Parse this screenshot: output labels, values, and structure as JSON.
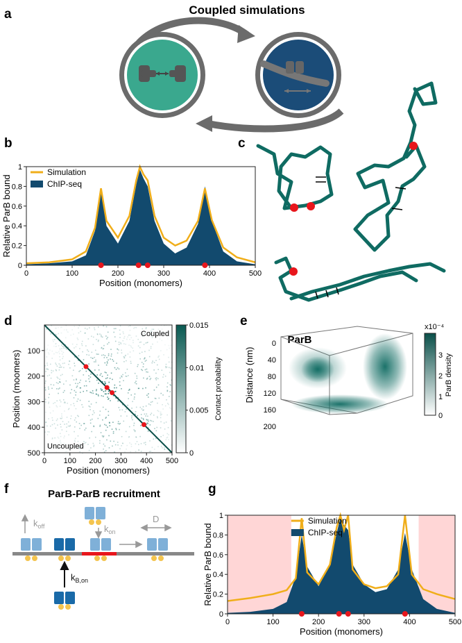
{
  "panels": {
    "a": {
      "letter": "a",
      "title": "Coupled simulations"
    },
    "b": {
      "letter": "b"
    },
    "c": {
      "letter": "c"
    },
    "d": {
      "letter": "d"
    },
    "e": {
      "letter": "e",
      "title": "ParB",
      "ylabel": "Distance (nm)",
      "yticks": [
        "0",
        "40",
        "80",
        "120",
        "160",
        "200"
      ],
      "colorbar_label": "ParB density",
      "colorbar_exp": "x10⁻⁴",
      "colorbar_ticks": [
        "3",
        "2",
        "1",
        "0"
      ]
    },
    "f": {
      "letter": "f",
      "title": "ParB-ParB recruitment",
      "rates": {
        "koff": "k",
        "koff_sub": "off",
        "kon": "k",
        "kon_sub": "on",
        "D": "D",
        "kbon": "k",
        "kbon_sub": "B,on"
      }
    },
    "g": {
      "letter": "g"
    }
  },
  "colors": {
    "chip": "#124a6e",
    "sim": "#f0ae1a",
    "teal": "#0f6b62",
    "red": "#e8161c",
    "shade": "#ffd6d6",
    "cellA": "#3aa88e",
    "cellB": "#1b4c78",
    "ring": "#6b6b6b"
  },
  "chart_data": [
    {
      "id": "b",
      "type": "area",
      "xlabel": "Position (monomers)",
      "ylabel": "Relative ParB bound",
      "xlim": [
        0,
        500
      ],
      "ylim": [
        0,
        1
      ],
      "xticks": [
        0,
        100,
        200,
        300,
        400,
        500
      ],
      "yticks": [
        0,
        0.2,
        0.4,
        0.6,
        0.8,
        1
      ],
      "ytick_labels": [
        "0",
        "0.2",
        "0.4",
        "0.6",
        "0.8",
        "1"
      ],
      "legend": [
        "Simulation",
        "ChIP-seq"
      ],
      "parS_sites": [
        163,
        245,
        265,
        390
      ],
      "x": [
        0,
        50,
        100,
        130,
        150,
        163,
        175,
        200,
        225,
        240,
        248,
        256,
        265,
        280,
        300,
        325,
        350,
        375,
        390,
        405,
        430,
        460,
        500
      ],
      "series": [
        {
          "name": "ChIP-seq",
          "values": [
            0.01,
            0.02,
            0.04,
            0.1,
            0.35,
            0.78,
            0.4,
            0.22,
            0.45,
            0.82,
            0.97,
            0.88,
            0.8,
            0.45,
            0.22,
            0.12,
            0.18,
            0.42,
            0.8,
            0.45,
            0.14,
            0.04,
            0.01
          ]
        },
        {
          "name": "Simulation",
          "values": [
            0.02,
            0.03,
            0.06,
            0.14,
            0.38,
            0.78,
            0.45,
            0.28,
            0.5,
            0.86,
            1.0,
            0.92,
            0.86,
            0.5,
            0.28,
            0.2,
            0.25,
            0.45,
            0.78,
            0.46,
            0.18,
            0.08,
            0.03
          ]
        }
      ]
    },
    {
      "id": "d",
      "type": "heatmap",
      "xlabel": "Position (monomers)",
      "ylabel": "Position (moomers)",
      "xlim": [
        0,
        500
      ],
      "ylim": [
        0,
        500
      ],
      "xticks": [
        0,
        100,
        200,
        300,
        400,
        500
      ],
      "yticks": [
        100,
        200,
        300,
        400,
        500
      ],
      "upper_label": "Coupled",
      "lower_label": "Uncoupled",
      "colorbar_label": "Contact probability",
      "colorbar_range": [
        0,
        0.015
      ],
      "colorbar_ticks": [
        0,
        0.005,
        0.01,
        0.015
      ],
      "colorbar_tick_labels": [
        "0",
        "0.005",
        "0.01",
        "0.015"
      ],
      "parS_sites": [
        163,
        245,
        265,
        390
      ]
    },
    {
      "id": "g",
      "type": "area",
      "xlabel": "Position (monomers)",
      "ylabel": "Relative ParB bound",
      "xlim": [
        0,
        500
      ],
      "ylim": [
        0,
        1
      ],
      "xticks": [
        0,
        100,
        200,
        300,
        400,
        500
      ],
      "yticks": [
        0,
        0.2,
        0.4,
        0.6,
        0.8,
        1
      ],
      "ytick_labels": [
        "0",
        "0.2",
        "0.4",
        "0.6",
        "0.8",
        "1"
      ],
      "legend": [
        "Simulation",
        "ChIP-seq"
      ],
      "shaded_regions": [
        [
          0,
          140
        ],
        [
          420,
          500
        ]
      ],
      "parS_sites": [
        163,
        245,
        265,
        390
      ],
      "x": [
        0,
        50,
        100,
        130,
        150,
        163,
        175,
        200,
        225,
        240,
        248,
        256,
        265,
        275,
        300,
        325,
        350,
        375,
        390,
        405,
        430,
        460,
        500
      ],
      "series": [
        {
          "name": "ChIP-seq",
          "values": [
            0.01,
            0.02,
            0.05,
            0.12,
            0.38,
            0.8,
            0.48,
            0.28,
            0.5,
            0.82,
            0.98,
            0.9,
            0.85,
            0.5,
            0.3,
            0.22,
            0.25,
            0.45,
            0.82,
            0.45,
            0.15,
            0.05,
            0.01
          ]
        },
        {
          "name": "Simulation",
          "values": [
            0.13,
            0.16,
            0.2,
            0.24,
            0.36,
            0.97,
            0.42,
            0.3,
            0.5,
            0.88,
            1.0,
            0.85,
            1.0,
            0.45,
            0.3,
            0.26,
            0.28,
            0.4,
            1.0,
            0.4,
            0.25,
            0.2,
            0.15
          ]
        }
      ]
    }
  ]
}
